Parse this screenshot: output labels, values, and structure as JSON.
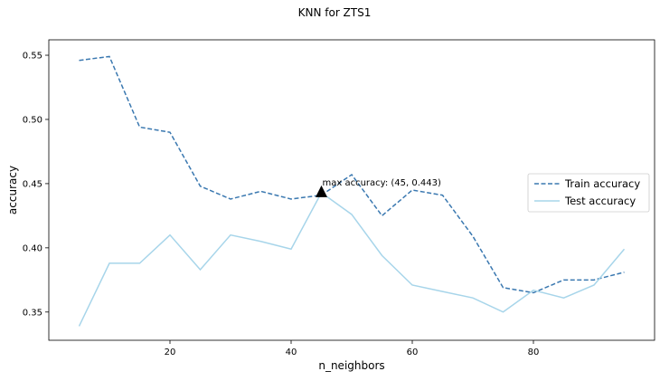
{
  "chart_data": {
    "type": "line",
    "title": "KNN for ZTS1",
    "xlabel": "n_neighbors",
    "ylabel": "accuracy",
    "xlim": [
      0,
      100
    ],
    "ylim": [
      0.328,
      0.562
    ],
    "x_ticks": [
      20,
      40,
      60,
      80
    ],
    "y_ticks": [
      0.35,
      0.4,
      0.45,
      0.5,
      0.55
    ],
    "x_tick_labels": [
      "20",
      "40",
      "60",
      "80"
    ],
    "y_tick_labels": [
      "0.35",
      "0.40",
      "0.45",
      "0.50",
      "0.55"
    ],
    "x": [
      5,
      10,
      15,
      20,
      25,
      30,
      35,
      40,
      45,
      50,
      55,
      60,
      65,
      70,
      75,
      80,
      85,
      90,
      95
    ],
    "series": [
      {
        "name": "Train accuracy",
        "color": "#3a78b0",
        "style": "dashed",
        "values": [
          0.546,
          0.549,
          0.494,
          0.49,
          0.448,
          0.438,
          0.444,
          0.438,
          0.441,
          0.457,
          0.425,
          0.445,
          0.441,
          0.409,
          0.369,
          0.365,
          0.375,
          0.375,
          0.381
        ]
      },
      {
        "name": "Test accuracy",
        "color": "#a7d5ea",
        "style": "solid",
        "values": [
          0.339,
          0.388,
          0.388,
          0.41,
          0.383,
          0.41,
          0.405,
          0.399,
          0.443,
          0.426,
          0.394,
          0.371,
          0.366,
          0.361,
          0.35,
          0.367,
          0.361,
          0.371,
          0.399
        ]
      }
    ],
    "annotation": {
      "text": "max accuracy: (45, 0.443)",
      "x": 45,
      "y": 0.443,
      "marker": "triangle",
      "marker_color": "#000000"
    },
    "legend_position": "center-right",
    "grid": false
  }
}
